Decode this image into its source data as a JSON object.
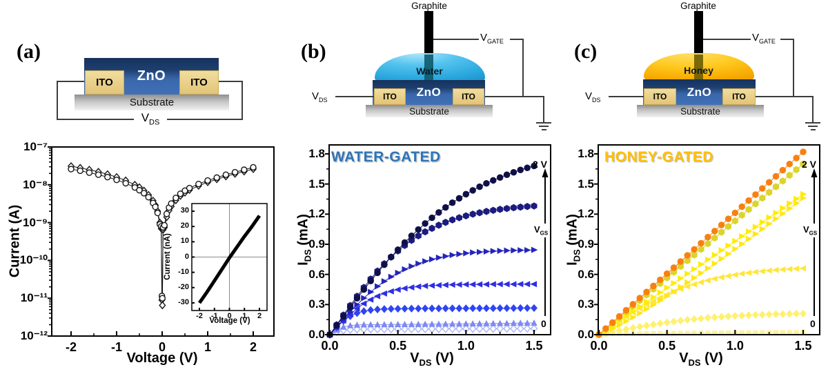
{
  "panels": {
    "a": {
      "label": "(a)",
      "schematic": {
        "zno": "ZnO",
        "ito_left": "ITO",
        "ito_right": "ITO",
        "substrate": "Substrate",
        "vds_base": "V",
        "vds_sub": "DS",
        "zno_color": "#2e5a97",
        "ito_color": "#e8c97a"
      },
      "plot": {
        "ylabel": "Current (A)",
        "xlabel": "Voltage (V)"
      },
      "inset": {
        "ylabel": "Current (nA)",
        "xlabel": "Voltage (V)"
      }
    },
    "b": {
      "label": "(b)",
      "schematic": {
        "graphite": "Graphite",
        "liquid": "Water",
        "zno": "ZnO",
        "ito_left": "ITO",
        "ito_right": "ITO",
        "substrate": "Substrate",
        "vds_base": "V",
        "vds_sub": "DS",
        "vgate_base": "V",
        "vgate_sub": "GATE",
        "liquid_color": "#2FAADF"
      },
      "plot": {
        "title": "WATER-GATED",
        "title_color": "#2E75B6",
        "ylabel_base": "I",
        "ylabel_sub": "DS",
        "ylabel_rest": " (mA)",
        "xlabel_base": "V",
        "xlabel_sub": "DS",
        "xlabel_rest": " (V)",
        "anno_top": "2 V",
        "anno_bottom": "0",
        "anno_arrow_base": "V",
        "anno_arrow_sub": "GS"
      }
    },
    "c": {
      "label": "(c)",
      "schematic": {
        "graphite": "Graphite",
        "liquid": "Honey",
        "zno": "ZnO",
        "ito_left": "ITO",
        "ito_right": "ITO",
        "substrate": "Substrate",
        "vds_base": "V",
        "vds_sub": "DS",
        "vgate_base": "V",
        "vgate_sub": "GATE",
        "liquid_color": "#F5A800"
      },
      "plot": {
        "title": "HONEY-GATED",
        "title_color": "#FFC000",
        "ylabel_base": "I",
        "ylabel_sub": "DS",
        "ylabel_rest": " (mA)",
        "xlabel_base": "V",
        "xlabel_sub": "DS",
        "xlabel_rest": " (V)",
        "anno_top": "2 V",
        "anno_bottom": "0",
        "anno_arrow_base": "V",
        "anno_arrow_sub": "GS"
      }
    }
  },
  "chart_data": {
    "panel_a": {
      "type": "scatter",
      "yscale": "log",
      "xlabel": "Voltage (V)",
      "ylabel": "Current (A)",
      "xlim": [
        -2.5,
        2.5
      ],
      "ylim": [
        1e-12,
        1e-07
      ],
      "xticks": {
        "vals": [
          -2,
          -1,
          0,
          1,
          2
        ],
        "labels": [
          "-2",
          "-1",
          "0",
          "1",
          "2"
        ],
        "minor": [
          -1.5,
          -0.5,
          0.5,
          1.5
        ]
      },
      "yticks": {
        "vals": [
          1e-07,
          1e-08,
          1e-09,
          1e-10,
          1e-11,
          1e-12
        ],
        "labels": [
          "10⁻⁷",
          "10⁻⁸",
          "10⁻⁹",
          "10⁻¹⁰",
          "10⁻¹¹",
          "10⁻¹²"
        ]
      },
      "x": [
        -2,
        -1.8,
        -1.6,
        -1.4,
        -1.2,
        -1.0,
        -0.8,
        -0.6,
        -0.5,
        -0.4,
        -0.3,
        -0.2,
        -0.15,
        -0.1,
        -0.05,
        -0.02,
        -0.005,
        0.005,
        0.02,
        0.05,
        0.1,
        0.15,
        0.2,
        0.3,
        0.4,
        0.5,
        0.6,
        0.8,
        1.0,
        1.2,
        1.4,
        1.6,
        1.8,
        2.0
      ],
      "series": [
        {
          "name": "iv-sweep-circles",
          "marker": "circle-open",
          "color": "#151515",
          "lw": 1,
          "size": 8,
          "y": [
            2.6e-08,
            2.35e-08,
            2.1e-08,
            1.85e-08,
            1.6e-08,
            1.35e-08,
            1.1e-08,
            8.5e-09,
            7.2e-09,
            6e-09,
            4.7e-09,
            3.3e-09,
            2.6e-09,
            1.8e-09,
            9e-10,
            8e-10,
            1.15e-11,
            1e-11,
            7.5e-10,
            8.5e-10,
            1.7e-09,
            2.5e-09,
            3.2e-09,
            4.5e-09,
            5.8e-09,
            7e-09,
            8.2e-09,
            1.05e-08,
            1.3e-08,
            1.55e-08,
            1.85e-08,
            2.15e-08,
            2.5e-08,
            2.9e-08
          ]
        },
        {
          "name": "iv-sweep-diamonds",
          "marker": "diamond-open",
          "color": "#151515",
          "lw": 1,
          "size": 8,
          "y": [
            3.1e-08,
            2.8e-08,
            2.5e-08,
            2.2e-08,
            1.9e-08,
            1.6e-08,
            1.3e-08,
            1e-08,
            8.6e-09,
            7e-09,
            5.4e-09,
            3.8e-09,
            2.9e-09,
            2e-09,
            1e-09,
            7e-10,
            9e-12,
            6.5e-12,
            6.5e-10,
            7.5e-10,
            1.4e-09,
            2.1e-09,
            2.7e-09,
            3.9e-09,
            5.1e-09,
            6.2e-09,
            7.3e-09,
            9.4e-09,
            1.17e-08,
            1.4e-08,
            1.67e-08,
            1.95e-08,
            2.25e-08,
            2.6e-08
          ]
        }
      ]
    },
    "panel_a_inset": {
      "type": "line",
      "xlabel": "Voltage (V)",
      "ylabel": "Current (nA)",
      "xlim": [
        -2.5,
        2.5
      ],
      "ylim": [
        -35,
        35
      ],
      "xticks": {
        "vals": [
          -2,
          -1,
          0,
          1,
          2
        ],
        "labels": [
          "-2",
          "-1",
          "0",
          "1",
          "2"
        ]
      },
      "yticks": {
        "vals": [
          30,
          20,
          10,
          0,
          -10,
          -20,
          -30
        ],
        "labels": [
          "30",
          "20",
          "10",
          "0",
          "-10",
          "-20",
          "-30"
        ]
      },
      "x": [
        -2,
        -1.5,
        -1,
        -0.5,
        0,
        0.5,
        1,
        1.5,
        2
      ],
      "series": [
        {
          "name": "linear-iv",
          "marker": null,
          "color": "#000000",
          "lw": 5,
          "y": [
            -30,
            -23,
            -15.5,
            -8,
            -0.5,
            6.5,
            13.5,
            20,
            27
          ]
        }
      ]
    },
    "panel_b": {
      "type": "scatter",
      "title": "WATER-GATED",
      "xlabel": "V_DS (V)",
      "ylabel": "I_DS (mA)",
      "xlim": [
        0,
        1.5
      ],
      "ylim": [
        0,
        1.8
      ],
      "gate_annotation": {
        "top": "2 V",
        "bottom": "0",
        "arrow": "V_GS increasing"
      },
      "xticks": {
        "vals": [
          0,
          0.5,
          1,
          1.5
        ],
        "labels": [
          "0.0",
          "0.5",
          "1.0",
          "1.5"
        ],
        "minor": [
          0.25,
          0.75,
          1.25
        ]
      },
      "yticks": {
        "vals": [
          0,
          0.3,
          0.6,
          0.9,
          1.2,
          1.5,
          1.8
        ],
        "labels": [
          "0.0",
          "0.3",
          "0.6",
          "0.9",
          "1.2",
          "1.5",
          "1.8"
        ],
        "minor": [
          0.15,
          0.45,
          0.75,
          1.05,
          1.35,
          1.65
        ]
      },
      "x": [
        0,
        0.05,
        0.1,
        0.15,
        0.2,
        0.25,
        0.3,
        0.35,
        0.4,
        0.45,
        0.5,
        0.55,
        0.6,
        0.65,
        0.7,
        0.75,
        0.8,
        0.85,
        0.9,
        0.95,
        1.0,
        1.05,
        1.1,
        1.15,
        1.2,
        1.25,
        1.3,
        1.35,
        1.4,
        1.45,
        1.5
      ],
      "series": [
        {
          "name": "vgs-2V",
          "marker": "circle",
          "color": "#101048",
          "size": 9.5,
          "y": [
            0,
            0.091,
            0.183,
            0.273,
            0.362,
            0.449,
            0.534,
            0.616,
            0.696,
            0.773,
            0.846,
            0.917,
            0.984,
            1.047,
            1.107,
            1.164,
            1.217,
            1.267,
            1.314,
            1.358,
            1.399,
            1.437,
            1.473,
            1.506,
            1.536,
            1.565,
            1.592,
            1.616,
            1.64,
            1.661,
            1.68
          ]
        },
        {
          "name": "vgs-high-2",
          "marker": "hexagon",
          "color": "#1b1b80",
          "size": 9.5,
          "y": [
            0,
            0.098,
            0.195,
            0.29,
            0.382,
            0.47,
            0.554,
            0.633,
            0.706,
            0.773,
            0.834,
            0.889,
            0.939,
            0.984,
            1.024,
            1.059,
            1.09,
            1.118,
            1.143,
            1.164,
            1.183,
            1.2,
            1.214,
            1.227,
            1.238,
            1.248,
            1.256,
            1.264,
            1.27,
            1.276,
            1.281
          ]
        },
        {
          "name": "vgs-mid-3",
          "marker": "tri-right",
          "color": "#2424bc",
          "size": 9,
          "y": [
            0,
            0.077,
            0.154,
            0.228,
            0.298,
            0.364,
            0.425,
            0.481,
            0.532,
            0.576,
            0.616,
            0.651,
            0.681,
            0.708,
            0.731,
            0.751,
            0.767,
            0.781,
            0.793,
            0.802,
            0.811,
            0.818,
            0.823,
            0.828,
            0.832,
            0.835,
            0.837,
            0.839,
            0.841,
            0.842,
            0.844
          ]
        },
        {
          "name": "vgs-mid-4",
          "marker": "tri-left",
          "color": "#2e2ee2",
          "size": 9,
          "y": [
            0,
            0.071,
            0.14,
            0.203,
            0.26,
            0.309,
            0.349,
            0.383,
            0.41,
            0.431,
            0.448,
            0.461,
            0.471,
            0.479,
            0.485,
            0.489,
            0.492,
            0.495,
            0.497,
            0.498,
            0.5,
            0.5,
            0.501,
            0.501,
            0.502,
            0.502,
            0.502,
            0.502,
            0.503,
            0.503,
            0.503
          ]
        },
        {
          "name": "vgs-low-5",
          "marker": "diamond",
          "color": "#2f44f2",
          "size": 9.5,
          "y": [
            0,
            0.074,
            0.137,
            0.184,
            0.215,
            0.234,
            0.245,
            0.251,
            0.255,
            0.257,
            0.258,
            0.259,
            0.26,
            0.26,
            0.261,
            0.261,
            0.261,
            0.262,
            0.262,
            0.262,
            0.262,
            0.263,
            0.263,
            0.263,
            0.263,
            0.264,
            0.264,
            0.264,
            0.265,
            0.265,
            0.265
          ]
        },
        {
          "name": "vgs-low-6",
          "marker": "tri-up",
          "color": "#8089f0",
          "size": 8.5,
          "y": [
            0,
            0.046,
            0.076,
            0.091,
            0.096,
            0.099,
            0.1,
            0.1,
            0.101,
            0.101,
            0.102,
            0.102,
            0.103,
            0.103,
            0.104,
            0.105,
            0.105,
            0.106,
            0.107,
            0.107,
            0.108,
            0.109,
            0.11,
            0.11,
            0.111,
            0.112,
            0.113,
            0.114,
            0.115,
            0.115,
            0.116
          ]
        },
        {
          "name": "vgs-0",
          "marker": "diamond-open",
          "color": "#a9b4fa",
          "size": 8.5,
          "y": [
            0,
            0.028,
            0.043,
            0.05,
            0.053,
            0.054,
            0.055,
            0.055,
            0.055,
            0.056,
            0.056,
            0.056,
            0.056,
            0.057,
            0.057,
            0.057,
            0.057,
            0.058,
            0.058,
            0.058,
            0.058,
            0.059,
            0.059,
            0.059,
            0.059,
            0.06,
            0.06,
            0.06,
            0.06,
            0.06,
            0.06
          ]
        }
      ]
    },
    "panel_c": {
      "type": "scatter",
      "title": "HONEY-GATED",
      "xlabel": "V_DS (V)",
      "ylabel": "I_DS (mA)",
      "xlim": [
        0,
        1.5
      ],
      "ylim": [
        0,
        1.8
      ],
      "gate_annotation": {
        "top": "2 V",
        "bottom": "0",
        "arrow": "V_GS increasing"
      },
      "xticks": {
        "vals": [
          0,
          0.5,
          1,
          1.5
        ],
        "labels": [
          "0.0",
          "0.5",
          "1.0",
          "1.5"
        ],
        "minor": [
          0.25,
          0.75,
          1.25
        ]
      },
      "yticks": {
        "vals": [
          0,
          0.3,
          0.6,
          0.9,
          1.2,
          1.5,
          1.8
        ],
        "labels": [
          "0.0",
          "0.3",
          "0.6",
          "0.9",
          "1.2",
          "1.5",
          "1.8"
        ],
        "minor": [
          0.15,
          0.45,
          0.75,
          1.05,
          1.35,
          1.65
        ]
      },
      "x": [
        0,
        0.05,
        0.1,
        0.15,
        0.2,
        0.25,
        0.3,
        0.35,
        0.4,
        0.45,
        0.5,
        0.55,
        0.6,
        0.65,
        0.7,
        0.75,
        0.8,
        0.85,
        0.9,
        0.95,
        1.0,
        1.05,
        1.1,
        1.15,
        1.2,
        1.25,
        1.3,
        1.35,
        1.4,
        1.45,
        1.5
      ],
      "series": [
        {
          "name": "vgs-2V",
          "marker": "circle",
          "color": "#F88010",
          "size": 9.5,
          "y": [
            0,
            0.061,
            0.121,
            0.182,
            0.243,
            0.303,
            0.364,
            0.425,
            0.485,
            0.546,
            0.607,
            0.667,
            0.728,
            0.789,
            0.849,
            0.91,
            0.971,
            1.031,
            1.092,
            1.153,
            1.213,
            1.274,
            1.335,
            1.395,
            1.456,
            1.517,
            1.577,
            1.638,
            1.699,
            1.759,
            1.82
          ]
        },
        {
          "name": "vgs-high-2",
          "marker": "hexagon",
          "color": "#DCD42A",
          "size": 9.5,
          "y": [
            0,
            0.057,
            0.113,
            0.17,
            0.227,
            0.283,
            0.34,
            0.397,
            0.453,
            0.51,
            0.567,
            0.623,
            0.68,
            0.737,
            0.793,
            0.85,
            0.907,
            0.963,
            1.02,
            1.077,
            1.133,
            1.19,
            1.247,
            1.303,
            1.36,
            1.417,
            1.473,
            1.53,
            1.587,
            1.643,
            1.7
          ]
        },
        {
          "name": "vgs-mid-3",
          "marker": "tri-right",
          "color": "#FFEC00",
          "size": 9,
          "y": [
            0,
            0.047,
            0.093,
            0.14,
            0.187,
            0.233,
            0.28,
            0.327,
            0.373,
            0.42,
            0.467,
            0.513,
            0.56,
            0.607,
            0.653,
            0.7,
            0.747,
            0.793,
            0.84,
            0.887,
            0.933,
            0.98,
            1.027,
            1.073,
            1.12,
            1.167,
            1.213,
            1.26,
            1.307,
            1.353,
            1.4
          ]
        },
        {
          "name": "vgs-mid-3b",
          "marker": "tri-right",
          "color": "#FFE714",
          "size": 9,
          "y": [
            0,
            0.027,
            0.06,
            0.096,
            0.134,
            0.173,
            0.214,
            0.255,
            0.297,
            0.341,
            0.385,
            0.429,
            0.474,
            0.52,
            0.566,
            0.613,
            0.66,
            0.708,
            0.756,
            0.804,
            0.854,
            0.902,
            0.952,
            1.002,
            1.052,
            1.103,
            1.154,
            1.205,
            1.256,
            1.308,
            1.36
          ]
        },
        {
          "name": "vgs-mid-4",
          "marker": "tri-left",
          "color": "#FFE63A",
          "size": 9,
          "y": [
            0,
            0.046,
            0.091,
            0.135,
            0.178,
            0.22,
            0.26,
            0.298,
            0.334,
            0.368,
            0.399,
            0.428,
            0.455,
            0.479,
            0.501,
            0.522,
            0.54,
            0.557,
            0.571,
            0.584,
            0.596,
            0.607,
            0.616,
            0.624,
            0.631,
            0.638,
            0.644,
            0.648,
            0.653,
            0.657,
            0.66
          ]
        },
        {
          "name": "vgs-low-5",
          "marker": "diamond",
          "color": "#FFF06E",
          "size": 9.5,
          "y": [
            0,
            0.014,
            0.027,
            0.041,
            0.054,
            0.067,
            0.079,
            0.091,
            0.102,
            0.112,
            0.122,
            0.131,
            0.14,
            0.148,
            0.155,
            0.161,
            0.168,
            0.173,
            0.178,
            0.183,
            0.187,
            0.19,
            0.194,
            0.197,
            0.199,
            0.201,
            0.204,
            0.205,
            0.207,
            0.209,
            0.21
          ]
        },
        {
          "name": "vgs-0",
          "marker": "square",
          "color": "#FAF2A0",
          "size": 7,
          "y": [
            0,
            0.006,
            0.008,
            0.009,
            0.01,
            0.011,
            0.012,
            0.012,
            0.013,
            0.013,
            0.014,
            0.014,
            0.015,
            0.015,
            0.016,
            0.016,
            0.017,
            0.017,
            0.018,
            0.018,
            0.019,
            0.019,
            0.02,
            0.02,
            0.021,
            0.021,
            0.022,
            0.022,
            0.023,
            0.023,
            0.024
          ]
        }
      ]
    }
  }
}
